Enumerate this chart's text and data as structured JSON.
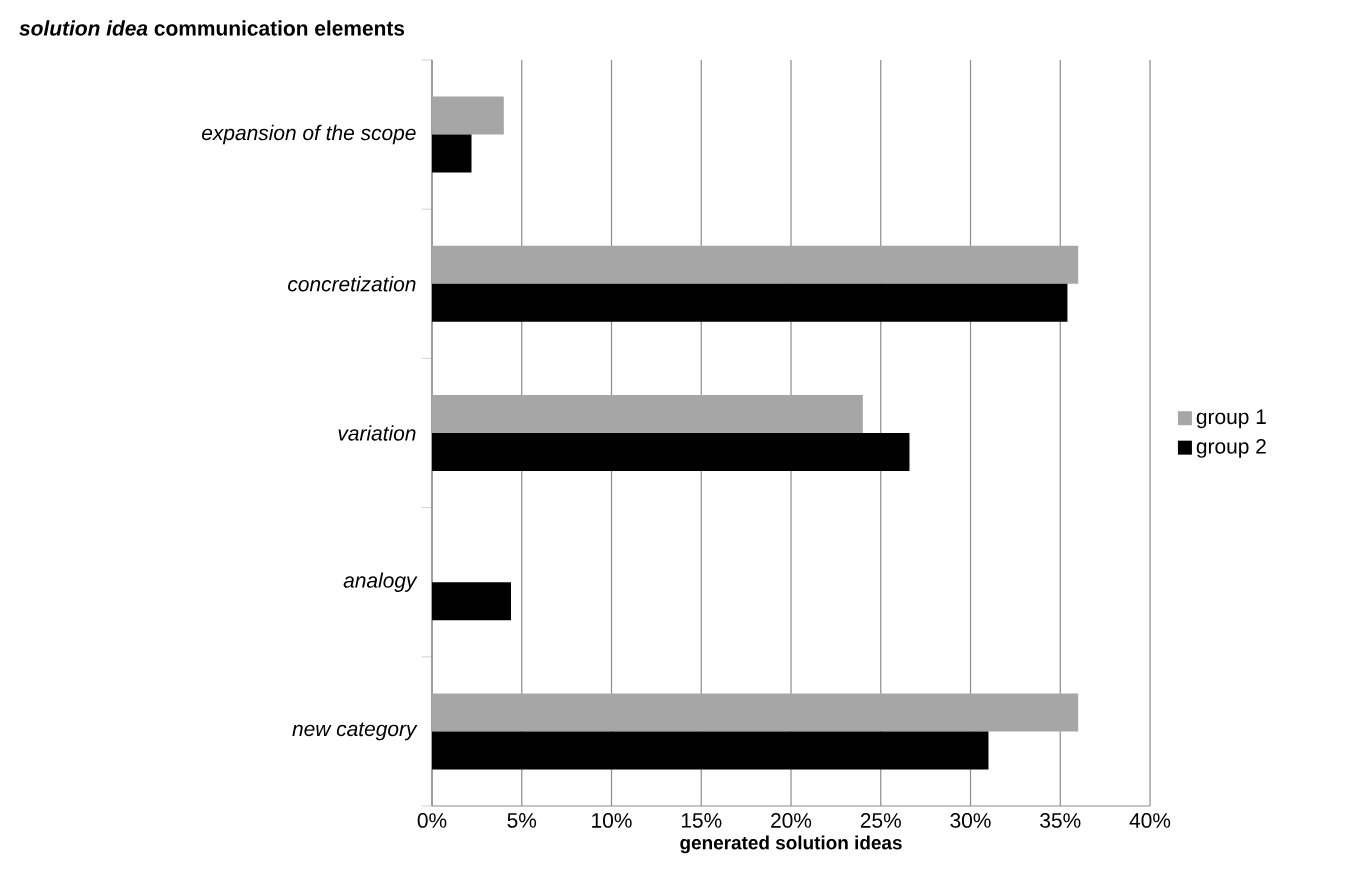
{
  "chart_data": {
    "type": "bar",
    "orientation": "horizontal",
    "title": "*solution idea* communication elements",
    "xlabel": "generated solution ideas",
    "categories": [
      "expansion of the scope",
      "concretization",
      "variation",
      "analogy",
      "new category"
    ],
    "series": [
      {
        "name": "group 1",
        "color": "#a6a6a6",
        "values": [
          4.0,
          36,
          24,
          0,
          36
        ]
      },
      {
        "name": "group 2",
        "color": "#000000",
        "values": [
          2.2,
          35.4,
          26.6,
          4.4,
          31
        ]
      }
    ],
    "xlim": [
      0,
      40
    ],
    "xticks": [
      {
        "value": 0,
        "label": "0%"
      },
      {
        "value": 5,
        "label": "5%"
      },
      {
        "value": 10,
        "label": "10%"
      },
      {
        "value": 15,
        "label": "15%"
      },
      {
        "value": 20,
        "label": "20%"
      },
      {
        "value": 25,
        "label": "25%"
      },
      {
        "value": 30,
        "label": "30%"
      },
      {
        "value": 35,
        "label": "35%"
      },
      {
        "value": 40,
        "label": "40%"
      }
    ],
    "grid": "x",
    "legend": "right"
  }
}
